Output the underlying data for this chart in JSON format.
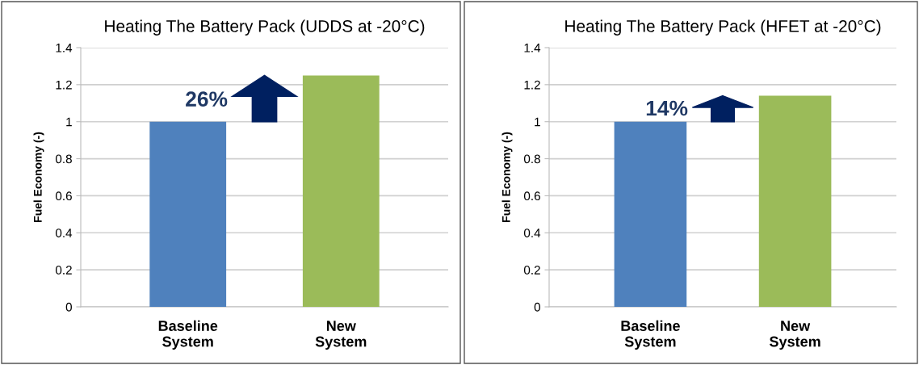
{
  "chart_data": [
    {
      "type": "bar",
      "title": "Heating The Battery Pack (UDDS at -20°C)",
      "ylabel": "Fuel Economy (-)",
      "categories": [
        "Baseline\nSystem",
        "New\nSystem"
      ],
      "values": [
        1,
        1.25
      ],
      "colors": [
        "#4f81bd",
        "#9bbb59"
      ],
      "ylim": [
        0,
        1.4
      ],
      "yticks": [
        0,
        0.2,
        0.4,
        0.6,
        0.8,
        1,
        1.2,
        1.4
      ],
      "grid": "y",
      "annotations": [
        "26%"
      ]
    },
    {
      "type": "bar",
      "title": "Heating The Battery Pack (HFET at -20°C)",
      "ylabel": "Fuel Economy (-)",
      "categories": [
        "Baseline\nSystem",
        "New\nSystem"
      ],
      "values": [
        1,
        1.14
      ],
      "colors": [
        "#4f81bd",
        "#9bbb59"
      ],
      "ylim": [
        0,
        1.4
      ],
      "yticks": [
        0,
        0.2,
        0.4,
        0.6,
        0.8,
        1,
        1.2,
        1.4
      ],
      "grid": "y",
      "annotations": [
        "14%"
      ]
    }
  ]
}
